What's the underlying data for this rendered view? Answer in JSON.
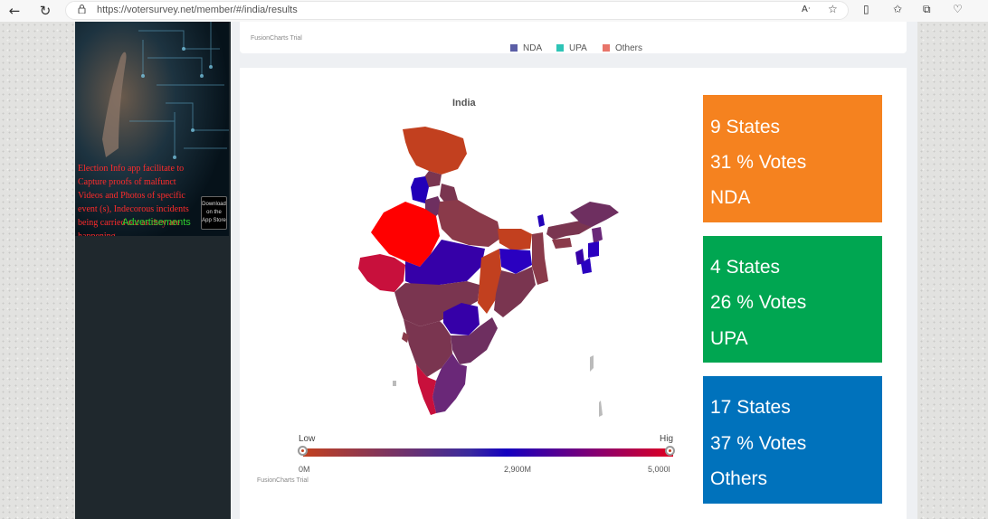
{
  "browser": {
    "url": "https://votersurvey.net/member/#/india/results"
  },
  "ad": {
    "text": "Election Info app facilitate to Capture proofs of malfunct Videos and Photos of specific event (s), Indecorous incidents being carried out as they are happening.",
    "store_badge": "Download on the App Store",
    "label": "Advertisements"
  },
  "top_chart": {
    "legend": [
      "NDA",
      "UPA",
      "Others"
    ],
    "trial": "FusionCharts Trial"
  },
  "map": {
    "title": "India",
    "scale_low": "Low",
    "scale_high": "Hig",
    "ticks": [
      "0M",
      "2,900M",
      "5,000l"
    ],
    "trial": "FusionCharts Trial"
  },
  "stats": [
    {
      "states": "9 States",
      "votes": "31 % Votes",
      "party": "NDA",
      "color": "#f5821f"
    },
    {
      "states": "4 States",
      "votes": "26 % Votes",
      "party": "UPA",
      "color": "#00a651"
    },
    {
      "states": "17 States",
      "votes": "37 % Votes",
      "party": "Others",
      "color": "#0072bc"
    }
  ],
  "colors": {
    "legend_nda": "#5b5ea6",
    "legend_upa": "#2ec4b6",
    "legend_others": "#e8756a"
  }
}
